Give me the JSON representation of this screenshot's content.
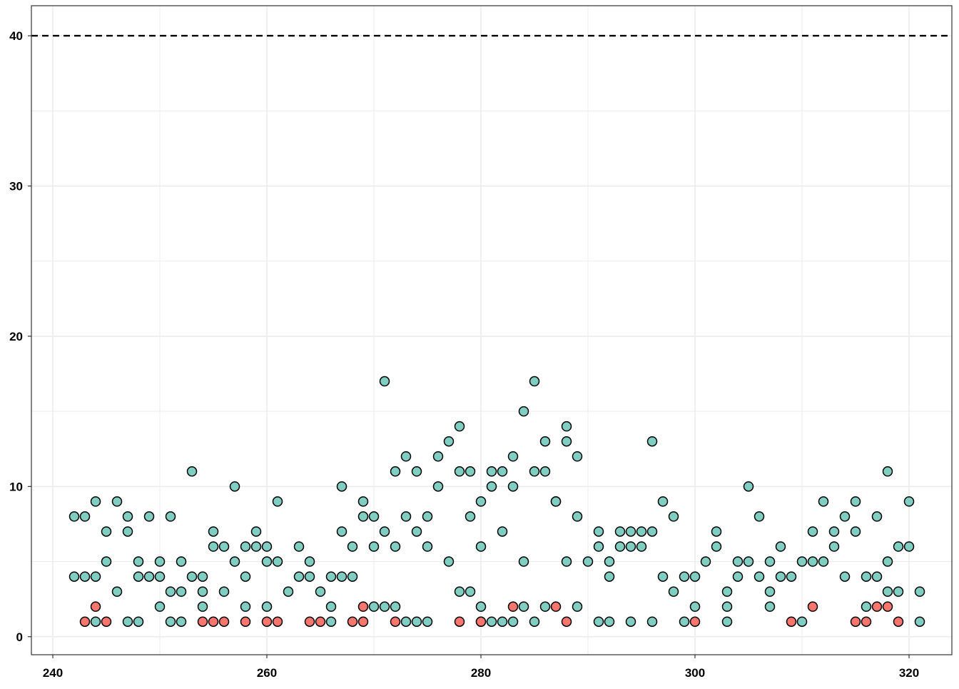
{
  "chart_data": {
    "type": "scatter",
    "title": "",
    "xlabel": "",
    "ylabel": "",
    "xlim": [
      238,
      324
    ],
    "ylim": [
      -1.2,
      42
    ],
    "x_ticks": [
      240,
      260,
      280,
      300,
      320
    ],
    "y_ticks": [
      0,
      10,
      20,
      30,
      40
    ],
    "x_minor_grid": [
      250,
      270,
      290,
      310
    ],
    "y_minor_grid": [
      5,
      15,
      25,
      35
    ],
    "grid": true,
    "reference_line": {
      "y": 40,
      "style": "dashed",
      "color": "#000000"
    },
    "series": [
      {
        "color": "#80CDC1",
        "points": [
          [
            242,
            8
          ],
          [
            242,
            4
          ],
          [
            243,
            8
          ],
          [
            243,
            4
          ],
          [
            244,
            9
          ],
          [
            244,
            4
          ],
          [
            244,
            1
          ],
          [
            245,
            7
          ],
          [
            245,
            5
          ],
          [
            246,
            9
          ],
          [
            246,
            3
          ],
          [
            247,
            8
          ],
          [
            247,
            7
          ],
          [
            247,
            1
          ],
          [
            248,
            5
          ],
          [
            248,
            4
          ],
          [
            248,
            1
          ],
          [
            249,
            8
          ],
          [
            249,
            4
          ],
          [
            250,
            5
          ],
          [
            250,
            4
          ],
          [
            250,
            2
          ],
          [
            251,
            8
          ],
          [
            251,
            3
          ],
          [
            251,
            1
          ],
          [
            252,
            5
          ],
          [
            252,
            3
          ],
          [
            252,
            1
          ],
          [
            253,
            11
          ],
          [
            253,
            4
          ],
          [
            254,
            4
          ],
          [
            254,
            3
          ],
          [
            254,
            2
          ],
          [
            255,
            7
          ],
          [
            255,
            6
          ],
          [
            256,
            6
          ],
          [
            256,
            3
          ],
          [
            257,
            10
          ],
          [
            257,
            5
          ],
          [
            258,
            6
          ],
          [
            258,
            4
          ],
          [
            258,
            2
          ],
          [
            259,
            7
          ],
          [
            259,
            6
          ],
          [
            260,
            6
          ],
          [
            260,
            5
          ],
          [
            260,
            2
          ],
          [
            261,
            9
          ],
          [
            261,
            5
          ],
          [
            262,
            3
          ],
          [
            263,
            6
          ],
          [
            263,
            4
          ],
          [
            264,
            5
          ],
          [
            264,
            4
          ],
          [
            265,
            3
          ],
          [
            266,
            4
          ],
          [
            266,
            2
          ],
          [
            266,
            1
          ],
          [
            267,
            10
          ],
          [
            267,
            7
          ],
          [
            267,
            4
          ],
          [
            268,
            6
          ],
          [
            268,
            4
          ],
          [
            269,
            9
          ],
          [
            269,
            8
          ],
          [
            270,
            8
          ],
          [
            270,
            6
          ],
          [
            270,
            2
          ],
          [
            271,
            17
          ],
          [
            271,
            7
          ],
          [
            271,
            2
          ],
          [
            272,
            11
          ],
          [
            272,
            6
          ],
          [
            272,
            2
          ],
          [
            273,
            12
          ],
          [
            273,
            8
          ],
          [
            273,
            1
          ],
          [
            274,
            11
          ],
          [
            274,
            7
          ],
          [
            274,
            1
          ],
          [
            275,
            8
          ],
          [
            275,
            6
          ],
          [
            275,
            1
          ],
          [
            276,
            12
          ],
          [
            276,
            10
          ],
          [
            277,
            13
          ],
          [
            277,
            5
          ],
          [
            278,
            14
          ],
          [
            278,
            11
          ],
          [
            278,
            3
          ],
          [
            279,
            11
          ],
          [
            279,
            8
          ],
          [
            279,
            3
          ],
          [
            280,
            9
          ],
          [
            280,
            6
          ],
          [
            280,
            2
          ],
          [
            280,
            1
          ],
          [
            281,
            11
          ],
          [
            281,
            10
          ],
          [
            281,
            1
          ],
          [
            282,
            11
          ],
          [
            282,
            7
          ],
          [
            282,
            1
          ],
          [
            283,
            12
          ],
          [
            283,
            10
          ],
          [
            283,
            1
          ],
          [
            284,
            15
          ],
          [
            284,
            5
          ],
          [
            284,
            2
          ],
          [
            285,
            17
          ],
          [
            285,
            11
          ],
          [
            285,
            1
          ],
          [
            286,
            13
          ],
          [
            286,
            11
          ],
          [
            286,
            2
          ],
          [
            287,
            9
          ],
          [
            287,
            9
          ],
          [
            288,
            14
          ],
          [
            288,
            13
          ],
          [
            288,
            5
          ],
          [
            289,
            12
          ],
          [
            289,
            8
          ],
          [
            289,
            2
          ],
          [
            290,
            5
          ],
          [
            291,
            7
          ],
          [
            291,
            6
          ],
          [
            291,
            1
          ],
          [
            292,
            5
          ],
          [
            292,
            4
          ],
          [
            292,
            1
          ],
          [
            293,
            7
          ],
          [
            293,
            6
          ],
          [
            294,
            7
          ],
          [
            294,
            6
          ],
          [
            294,
            1
          ],
          [
            295,
            7
          ],
          [
            295,
            6
          ],
          [
            296,
            13
          ],
          [
            296,
            7
          ],
          [
            296,
            1
          ],
          [
            297,
            9
          ],
          [
            297,
            4
          ],
          [
            298,
            8
          ],
          [
            298,
            3
          ],
          [
            299,
            4
          ],
          [
            299,
            1
          ],
          [
            300,
            4
          ],
          [
            300,
            2
          ],
          [
            301,
            5
          ],
          [
            302,
            7
          ],
          [
            302,
            6
          ],
          [
            303,
            3
          ],
          [
            303,
            2
          ],
          [
            303,
            1
          ],
          [
            304,
            5
          ],
          [
            304,
            4
          ],
          [
            305,
            10
          ],
          [
            305,
            5
          ],
          [
            306,
            8
          ],
          [
            306,
            4
          ],
          [
            307,
            5
          ],
          [
            307,
            3
          ],
          [
            307,
            2
          ],
          [
            308,
            6
          ],
          [
            308,
            4
          ],
          [
            309,
            4
          ],
          [
            310,
            5
          ],
          [
            310,
            1
          ],
          [
            311,
            7
          ],
          [
            311,
            5
          ],
          [
            312,
            9
          ],
          [
            312,
            5
          ],
          [
            313,
            7
          ],
          [
            313,
            6
          ],
          [
            314,
            8
          ],
          [
            314,
            4
          ],
          [
            315,
            9
          ],
          [
            315,
            7
          ],
          [
            316,
            4
          ],
          [
            316,
            2
          ],
          [
            317,
            8
          ],
          [
            317,
            4
          ],
          [
            318,
            11
          ],
          [
            318,
            5
          ],
          [
            318,
            3
          ],
          [
            319,
            6
          ],
          [
            319,
            3
          ],
          [
            320,
            9
          ],
          [
            320,
            6
          ],
          [
            321,
            3
          ],
          [
            321,
            1
          ]
        ]
      },
      {
        "color": "#F8766D",
        "points": [
          [
            243,
            1
          ],
          [
            244,
            2
          ],
          [
            245,
            1
          ],
          [
            254,
            1
          ],
          [
            255,
            1
          ],
          [
            256,
            1
          ],
          [
            258,
            1
          ],
          [
            260,
            1
          ],
          [
            261,
            1
          ],
          [
            264,
            1
          ],
          [
            265,
            1
          ],
          [
            268,
            1
          ],
          [
            269,
            2
          ],
          [
            269,
            1
          ],
          [
            272,
            1
          ],
          [
            278,
            1
          ],
          [
            280,
            1
          ],
          [
            283,
            2
          ],
          [
            287,
            2
          ],
          [
            288,
            1
          ],
          [
            300,
            1
          ],
          [
            309,
            1
          ],
          [
            311,
            2
          ],
          [
            315,
            1
          ],
          [
            316,
            1
          ],
          [
            317,
            2
          ],
          [
            318,
            2
          ],
          [
            319,
            1
          ]
        ]
      }
    ]
  }
}
